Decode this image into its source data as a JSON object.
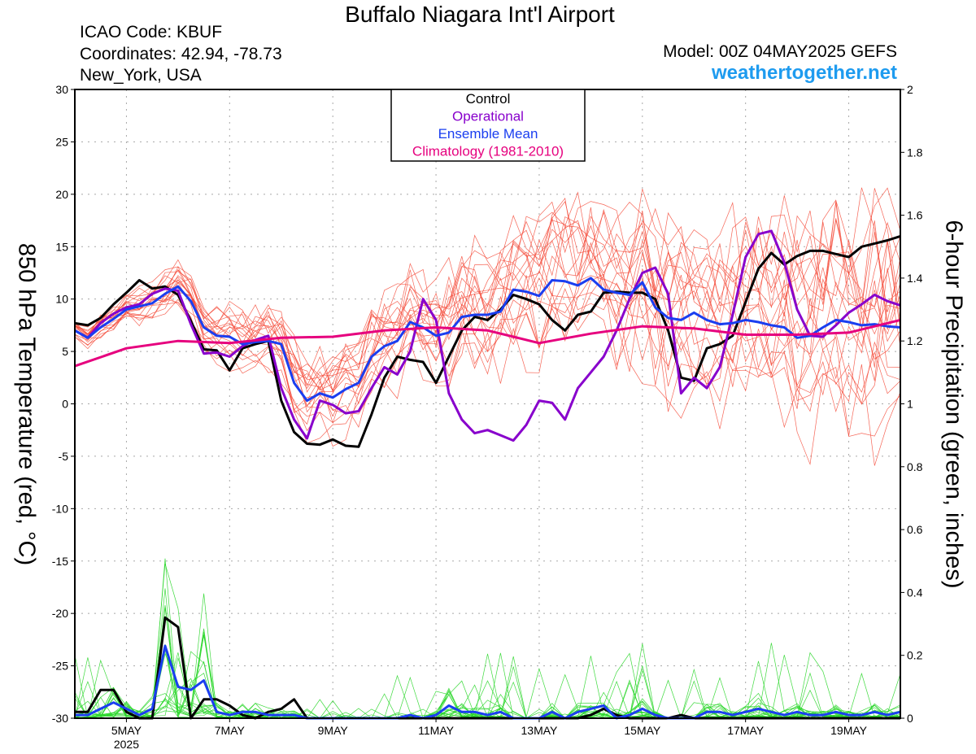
{
  "header": {
    "title": "Buffalo Niagara Int'l Airport",
    "icao": "ICAO Code: KBUF",
    "coordinates": "Coordinates: 42.94, -78.73",
    "location": "New_York, USA",
    "model": "Model: 00Z 04MAY2025 GEFS",
    "site": "weathertogether.net"
  },
  "chart_data": {
    "type": "line",
    "xlabel": "",
    "ylabel_left": "850 hPa Temperature (red, °C)",
    "ylabel_right": "6-hour Precipitation (green, inches)",
    "x_unit": "days since 00Z 04MAY2025",
    "xlim": [
      0,
      16
    ],
    "ylim_left": [
      -30,
      30
    ],
    "ylim_right": [
      0,
      2
    ],
    "x_ticks": [
      {
        "x": 1,
        "label": "5MAY",
        "sublabel": "2025"
      },
      {
        "x": 3,
        "label": "7MAY"
      },
      {
        "x": 5,
        "label": "9MAY"
      },
      {
        "x": 7,
        "label": "11MAY"
      },
      {
        "x": 9,
        "label": "13MAY"
      },
      {
        "x": 11,
        "label": "15MAY"
      },
      {
        "x": 13,
        "label": "17MAY"
      },
      {
        "x": 15,
        "label": "19MAY"
      }
    ],
    "y_ticks_left": [
      "30",
      "25",
      "20",
      "15",
      "10",
      "5",
      "0",
      "-5",
      "-10",
      "-15",
      "-20",
      "-25",
      "-30"
    ],
    "y_ticks_right": [
      "2",
      "1.8",
      "1.6",
      "1.4",
      "1.2",
      "1",
      "0.8",
      "0.6",
      "0.4",
      "0.2",
      "0"
    ],
    "grid": true,
    "legend": {
      "position": "top-center",
      "items": [
        {
          "label": "Control",
          "color": "#000000"
        },
        {
          "label": "Operational",
          "color": "#8800cc"
        },
        {
          "label": "Ensemble Mean",
          "color": "#1a3ef0"
        },
        {
          "label": "Climatology (1981-2010)",
          "color": "#e6007e"
        }
      ]
    },
    "colors": {
      "member_temp": "#f44a38",
      "member_precip": "#29d629",
      "control": "#000000",
      "operational": "#8800cc",
      "mean": "#1a3ef0",
      "climatology": "#e6007e"
    },
    "series": [
      {
        "name": "Control",
        "axis": "left",
        "x": [
          0,
          0.25,
          0.5,
          0.75,
          1,
          1.25,
          1.5,
          1.75,
          2,
          2.25,
          2.5,
          2.75,
          3,
          3.25,
          3.5,
          3.75,
          4,
          4.25,
          4.5,
          4.75,
          5,
          5.25,
          5.5,
          5.75,
          6,
          6.25,
          6.5,
          6.75,
          7,
          7.25,
          7.5,
          7.75,
          8,
          8.25,
          8.5,
          8.75,
          9,
          9.25,
          9.5,
          9.75,
          10,
          10.25,
          10.5,
          10.75,
          11,
          11.25,
          11.5,
          11.75,
          12,
          12.25,
          12.5,
          12.75,
          13,
          13.25,
          13.5,
          13.75,
          14,
          14.25,
          14.5,
          14.75,
          15,
          15.25,
          15.5,
          15.75,
          16
        ],
        "values": [
          7.7,
          7.5,
          8.2,
          9.5,
          10.6,
          11.8,
          11.0,
          11.2,
          10.4,
          7.9,
          5.2,
          5.1,
          3.2,
          5.3,
          5.7,
          6.0,
          0.3,
          -2.7,
          -3.8,
          -3.9,
          -3.4,
          -4.0,
          -4.1,
          -1.0,
          2.5,
          4.5,
          4.2,
          4.0,
          2.0,
          4.5,
          7.0,
          8.3,
          8.0,
          9.0,
          10.4,
          10.0,
          9.5,
          8.0,
          7.0,
          8.5,
          8.8,
          10.6,
          10.7,
          10.6,
          10.6,
          10.0,
          7.0,
          2.5,
          2.2,
          5.3,
          5.7,
          6.5,
          9.7,
          12.9,
          14.4,
          13.3,
          14.1,
          14.6,
          14.6,
          14.3,
          14.0,
          15.0,
          15.3,
          15.6,
          16.0
        ]
      },
      {
        "name": "Operational",
        "axis": "left",
        "x": [
          0,
          0.25,
          0.5,
          0.75,
          1,
          1.25,
          1.5,
          1.75,
          2,
          2.25,
          2.5,
          2.75,
          3,
          3.25,
          3.5,
          3.75,
          4,
          4.25,
          4.5,
          4.75,
          5,
          5.25,
          5.5,
          5.75,
          6,
          6.25,
          6.5,
          6.75,
          7,
          7.25,
          7.5,
          7.75,
          8,
          8.25,
          8.5,
          8.75,
          9,
          9.25,
          9.5,
          9.75,
          10,
          10.25,
          10.5,
          10.75,
          11,
          11.25,
          11.5,
          11.75,
          12,
          12.25,
          12.5,
          12.75,
          13,
          13.25,
          13.5,
          13.75,
          14,
          14.25,
          14.5,
          14.75,
          15,
          15.25,
          15.5,
          15.75,
          16
        ],
        "values": [
          7.0,
          6.3,
          7.7,
          8.6,
          9.2,
          9.5,
          10.5,
          11.0,
          10.8,
          7.6,
          4.8,
          4.9,
          4.5,
          5.5,
          6.1,
          6.5,
          1.5,
          -1.5,
          -3.3,
          0.3,
          -0.1,
          -0.9,
          -0.7,
          1.5,
          3.5,
          2.8,
          5.0,
          10.0,
          8.0,
          1.0,
          -1.5,
          -2.8,
          -2.5,
          -3.0,
          -3.5,
          -2.0,
          0.3,
          0.1,
          -1.5,
          1.5,
          3.0,
          4.5,
          7.0,
          10.0,
          12.5,
          13.0,
          10.5,
          1.0,
          2.5,
          1.5,
          3.5,
          8.5,
          14.0,
          16.2,
          16.5,
          13.5,
          9.0,
          6.5,
          6.4,
          7.5,
          8.7,
          9.5,
          10.4,
          9.8,
          9.4
        ]
      },
      {
        "name": "Ensemble Mean",
        "axis": "left",
        "x": [
          0,
          0.25,
          0.5,
          0.75,
          1,
          1.25,
          1.5,
          1.75,
          2,
          2.25,
          2.5,
          2.75,
          3,
          3.25,
          3.5,
          3.75,
          4,
          4.25,
          4.5,
          4.75,
          5,
          5.25,
          5.5,
          5.75,
          6,
          6.25,
          6.5,
          6.75,
          7,
          7.25,
          7.5,
          7.75,
          8,
          8.25,
          8.5,
          8.75,
          9,
          9.25,
          9.5,
          9.75,
          10,
          10.25,
          10.5,
          10.75,
          11,
          11.25,
          11.5,
          11.75,
          12,
          12.25,
          12.5,
          12.75,
          13,
          13.25,
          13.5,
          13.75,
          14,
          14.25,
          14.5,
          14.75,
          15,
          15.25,
          15.5,
          15.75,
          16
        ],
        "values": [
          7.0,
          6.3,
          7.3,
          8.1,
          9.0,
          9.3,
          9.6,
          10.5,
          11.2,
          9.8,
          7.3,
          6.5,
          6.4,
          5.7,
          5.9,
          6.0,
          5.7,
          2.0,
          0.3,
          1.0,
          0.6,
          1.4,
          2.0,
          4.5,
          5.5,
          6.0,
          7.8,
          7.3,
          6.5,
          6.8,
          8.3,
          8.5,
          8.5,
          8.8,
          10.9,
          10.7,
          10.3,
          11.8,
          11.7,
          11.3,
          12.0,
          10.9,
          10.6,
          10.4,
          11.6,
          9.2,
          8.2,
          8.0,
          8.7,
          8.0,
          7.6,
          7.7,
          8.0,
          7.8,
          7.5,
          7.3,
          6.3,
          6.5,
          7.3,
          8.0,
          7.8,
          7.5,
          7.6,
          7.4,
          7.3
        ]
      },
      {
        "name": "Climatology (1981-2010)",
        "axis": "left",
        "x": [
          0,
          1,
          2,
          3,
          4,
          5,
          6,
          7,
          8,
          9,
          10,
          11,
          12,
          13,
          14,
          15,
          16
        ],
        "values": [
          3.6,
          5.3,
          6.0,
          5.8,
          6.3,
          6.4,
          7.0,
          7.3,
          7.0,
          5.8,
          6.7,
          7.4,
          7.2,
          6.6,
          6.6,
          6.8,
          8.0
        ]
      },
      {
        "name": "Control",
        "axis": "right",
        "x": [
          0,
          0.25,
          0.5,
          0.75,
          1,
          1.25,
          1.5,
          1.75,
          2,
          2.25,
          2.5,
          2.75,
          3,
          3.25,
          3.5,
          3.75,
          4,
          4.25,
          4.5,
          4.75,
          5,
          5.25,
          5.5,
          5.75,
          6,
          6.25,
          6.5,
          6.75,
          7,
          7.25,
          7.5,
          7.75,
          8,
          8.25,
          8.5,
          8.75,
          9,
          9.25,
          9.5,
          9.75,
          10,
          10.25,
          10.5,
          10.75,
          11,
          11.25,
          11.5,
          11.75,
          12,
          12.25,
          12.5,
          12.75,
          13,
          13.25,
          13.5,
          13.75,
          14,
          14.25,
          14.5,
          14.75,
          15,
          15.25,
          15.5,
          15.75,
          16
        ],
        "values": [
          0.02,
          0.02,
          0.09,
          0.09,
          0.02,
          0.0,
          0.0,
          0.32,
          0.29,
          0.0,
          0.06,
          0.06,
          0.04,
          0.01,
          0.0,
          0.02,
          0.03,
          0.06,
          0.0,
          0.0,
          0.0,
          0.0,
          0.0,
          0.0,
          0.0,
          0.0,
          0.0,
          0.0,
          0.0,
          0.0,
          0.0,
          0.0,
          0.0,
          0.0,
          0.0,
          0.0,
          0.0,
          0.0,
          0.0,
          0.0,
          0.01,
          0.03,
          0.01,
          0.0,
          0.0,
          0.0,
          0.0,
          0.01,
          0.0,
          0.0,
          0.0,
          0.0,
          0.0,
          0.0,
          0.0,
          0.0,
          0.0,
          0.0,
          0.0,
          0.0,
          0.0,
          0.0,
          0.0,
          0.0,
          0.0
        ]
      },
      {
        "name": "Ensemble Mean",
        "axis": "right",
        "x": [
          0,
          0.25,
          0.5,
          0.75,
          1,
          1.25,
          1.5,
          1.75,
          2,
          2.25,
          2.5,
          2.75,
          3,
          3.25,
          3.5,
          3.75,
          4,
          4.25,
          4.5,
          4.75,
          5,
          5.25,
          5.5,
          5.75,
          6,
          6.25,
          6.5,
          6.75,
          7,
          7.25,
          7.5,
          7.75,
          8,
          8.25,
          8.5,
          8.75,
          9,
          9.25,
          9.5,
          9.75,
          10,
          10.25,
          10.5,
          10.75,
          11,
          11.25,
          11.5,
          11.75,
          12,
          12.25,
          12.5,
          12.75,
          13,
          13.25,
          13.5,
          13.75,
          14,
          14.25,
          14.5,
          14.75,
          15,
          15.25,
          15.5,
          15.75,
          16
        ],
        "values": [
          0.01,
          0.01,
          0.03,
          0.05,
          0.03,
          0.01,
          0.03,
          0.23,
          0.1,
          0.09,
          0.12,
          0.02,
          0.01,
          0.02,
          0.02,
          0.01,
          0.01,
          0.01,
          0.0,
          0.0,
          0.0,
          0.0,
          0.0,
          0.0,
          0.0,
          0.0,
          0.01,
          0.0,
          0.01,
          0.04,
          0.02,
          0.02,
          0.01,
          0.02,
          0.0,
          0.0,
          0.0,
          0.02,
          0.0,
          0.02,
          0.03,
          0.04,
          0.0,
          0.01,
          0.03,
          0.01,
          0.0,
          0.0,
          0.0,
          0.02,
          0.02,
          0.01,
          0.02,
          0.03,
          0.02,
          0.01,
          0.02,
          0.01,
          0.01,
          0.02,
          0.01,
          0.01,
          0.02,
          0.01,
          0.02
        ]
      }
    ]
  }
}
